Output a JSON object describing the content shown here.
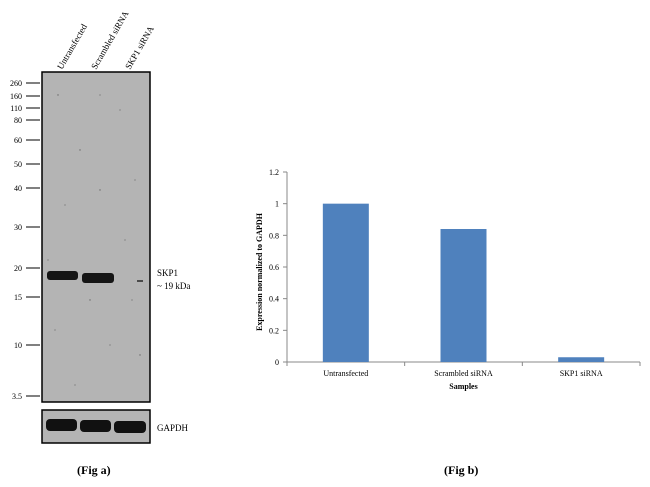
{
  "blot": {
    "lanes": [
      "Untransfected",
      "Scrambled siRNA",
      "SKP1 siRNA"
    ],
    "markers": [
      "260",
      "160",
      "110",
      "80",
      "60",
      "50",
      "40",
      "30",
      "20",
      "15",
      "10",
      "3.5"
    ],
    "band_label": "SKP1",
    "band_size": "~ 19 kDa",
    "loading_control": "GAPDH",
    "caption": "(Fig a)"
  },
  "chart_data": {
    "type": "bar",
    "categories": [
      "Untransfected",
      "Scrambled siRNA",
      "SKP1 siRNA"
    ],
    "values": [
      1.0,
      0.84,
      0.03
    ],
    "xlabel": "Samples",
    "ylabel": "Expression normalized to GAPDH",
    "ylim": [
      0,
      1.2
    ],
    "yticks": [
      "0",
      "0.2",
      "0.4",
      "0.6",
      "0.8",
      "1",
      "1.2"
    ],
    "bar_color": "#4f81bd",
    "grid": false,
    "caption": "(Fig b)"
  }
}
